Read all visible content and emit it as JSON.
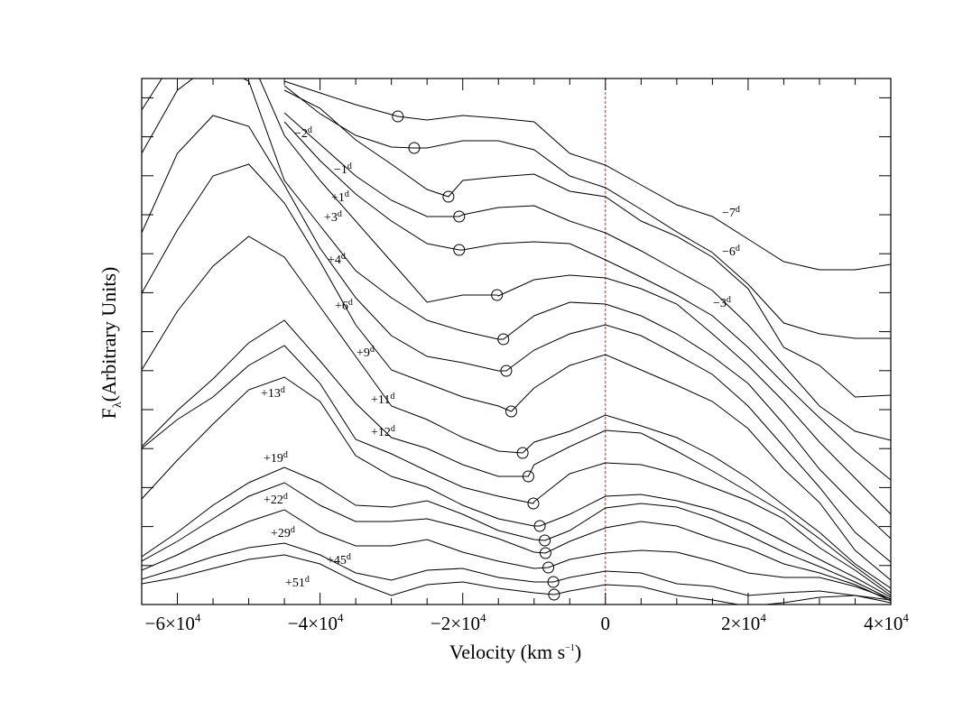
{
  "chart_data": {
    "type": "line",
    "title": "",
    "xlabel": {
      "text": "Velocity (km s",
      "superscript": "−1",
      "suffix": ")"
    },
    "ylabel": {
      "text": "F",
      "subscript": "λ",
      "suffix": "(Arbitrary Units)"
    },
    "xlim": [
      -65000,
      40000
    ],
    "ylim": [
      0,
      58.3
    ],
    "x_major_ticks": [
      -60000,
      -40000,
      -20000,
      0,
      20000,
      40000
    ],
    "x_minor_tick_step": 5000,
    "y_tick_step": 4.32,
    "y_tick_labels": "none",
    "x_tick_labels": [
      {
        "mantissa": "−6×10",
        "exp": "4"
      },
      {
        "mantissa": "−4×10",
        "exp": "4"
      },
      {
        "mantissa": "−2×10",
        "exp": "4"
      },
      {
        "mantissa": "0",
        "exp": ""
      },
      {
        "mantissa": "2×10",
        "exp": "4"
      },
      {
        "mantissa": "4×10",
        "exp": "4"
      }
    ],
    "grid": false,
    "line_color": "#000000",
    "reference_line": {
      "velocity": 0,
      "color": "#a8332e",
      "style": "dashed"
    },
    "epoch_unit": "d",
    "velocities": [
      -65000,
      -60000,
      -55000,
      -50000,
      -45000,
      -40000,
      -35000,
      -30000,
      -25000,
      -20000,
      -15000,
      -10000,
      -5000,
      0,
      5000,
      10000,
      15000,
      20000,
      25000,
      30000,
      35000,
      40000
    ],
    "series": [
      {
        "name": "−7",
        "flux": [
          null,
          null,
          null,
          null,
          58.0,
          56.7,
          55.4,
          54.3,
          53.7,
          54.2,
          53.9,
          53.5,
          50.0,
          48.7,
          46.5,
          44.3,
          43.0,
          40.5,
          38.0,
          37.1,
          37.1,
          37.7
        ],
        "minimum": [
          -29100,
          54.1
        ]
      },
      {
        "name": "−6",
        "flux": [
          null,
          null,
          null,
          null,
          57.5,
          54.4,
          52.0,
          50.7,
          50.6,
          51.4,
          51.4,
          50.4,
          47.5,
          46.2,
          43.8,
          41.3,
          39.0,
          35.5,
          31.2,
          30.0,
          29.5,
          29.5
        ],
        "minimum": [
          -26800,
          50.6
        ]
      },
      {
        "name": "−3",
        "flux": [
          null,
          null,
          null,
          null,
          57.0,
          55.0,
          51.5,
          48.8,
          46.0,
          47.0,
          47.4,
          47.7,
          45.8,
          45.2,
          42.5,
          40.8,
          38.5,
          35.0,
          28.5,
          26.5,
          23.0,
          23.2
        ],
        "minimum": [
          -22000,
          45.2
        ]
      },
      {
        "name": "−2",
        "flux": [
          null,
          null,
          null,
          null,
          54.5,
          51.0,
          47.5,
          44.8,
          43.0,
          43.2,
          44.0,
          44.2,
          42.5,
          41.2,
          39.2,
          37.0,
          34.8,
          31.0,
          26.5,
          22.0,
          19.2,
          18.2
        ],
        "minimum": [
          -20500,
          43.0
        ]
      },
      {
        "name": "−1",
        "flux": [
          null,
          null,
          null,
          null,
          53.5,
          49.2,
          45.5,
          42.5,
          40.0,
          39.3,
          40.0,
          40.2,
          40.0,
          38.2,
          36.3,
          34.3,
          32.0,
          28.5,
          24.5,
          20.7,
          17.0,
          13.8
        ],
        "minimum": [
          -20500,
          39.3
        ]
      },
      {
        "name": "+1",
        "flux": [
          54.8,
          61.0,
          63.0,
          61.0,
          52.0,
          47.0,
          42.5,
          38.0,
          33.5,
          34.3,
          34.2,
          36.0,
          36.5,
          36.2,
          35.0,
          33.3,
          30.0,
          26.5,
          22.5,
          18.0,
          14.0,
          10.0
        ],
        "minimum": [
          -15200,
          34.3
        ]
      },
      {
        "name": "+3",
        "flux": [
          50.0,
          57.0,
          60.0,
          58.0,
          47.0,
          42.0,
          37.0,
          34.0,
          31.5,
          30.3,
          29.4,
          32.0,
          33.5,
          33.3,
          32.0,
          30.0,
          27.5,
          24.5,
          20.0,
          15.0,
          11.0,
          7.3
        ],
        "minimum": [
          -14300,
          29.4
        ]
      },
      {
        "name": "+4",
        "flux": [
          41.2,
          50.0,
          54.2,
          53.0,
          46.5,
          39.5,
          34.0,
          29.8,
          27.5,
          26.8,
          25.9,
          28.2,
          30.0,
          31.0,
          29.8,
          27.7,
          25.5,
          22.0,
          17.5,
          13.0,
          8.0,
          4.7
        ],
        "minimum": [
          -13900,
          25.9
        ]
      },
      {
        "name": "+6",
        "flux": [
          34.5,
          41.5,
          47.5,
          48.8,
          44.5,
          38.0,
          31.0,
          26.0,
          24.5,
          23.0,
          22.0,
          24.0,
          26.5,
          27.7,
          26.0,
          24.3,
          22.5,
          19.5,
          15.0,
          11.3,
          6.0,
          2.7
        ],
        "minimum": [
          -13200,
          21.4
        ]
      },
      {
        "name": "+9",
        "flux": [
          26.0,
          32.5,
          37.5,
          40.8,
          38.5,
          33.0,
          27.5,
          22.0,
          20.5,
          18.5,
          17.0,
          18.0,
          19.2,
          21.0,
          19.8,
          18.5,
          16.5,
          14.0,
          11.0,
          8.0,
          4.5,
          1.8
        ],
        "minimum": [
          -11600,
          16.8
        ]
      },
      {
        "name": "+11",
        "flux": [
          17.5,
          21.5,
          25.0,
          29.0,
          31.5,
          27.0,
          22.3,
          18.5,
          17.3,
          15.5,
          14.2,
          15.5,
          17.5,
          19.3,
          19.0,
          17.0,
          14.8,
          12.5,
          10.2,
          7.3,
          4.2,
          1.3
        ],
        "minimum": [
          -10800,
          14.2
        ]
      },
      {
        "name": "+12",
        "flux": [
          17.3,
          20.5,
          23.0,
          26.5,
          28.7,
          24.5,
          18.3,
          16.7,
          14.8,
          13.0,
          12.0,
          11.4,
          14.5,
          15.7,
          15.5,
          14.5,
          13.0,
          11.5,
          9.5,
          6.3,
          3.8,
          1.0
        ],
        "minimum": [
          -10100,
          11.2
        ]
      },
      {
        "name": "+13",
        "flux": [
          11.7,
          16.0,
          20.0,
          23.8,
          25.2,
          22.5,
          16.5,
          14.2,
          13.0,
          11.0,
          9.5,
          8.7,
          10.0,
          12.0,
          12.2,
          11.5,
          10.5,
          9.0,
          7.0,
          5.0,
          3.0,
          0.8
        ],
        "minimum": [
          -9200,
          8.7
        ]
      },
      {
        "name": "+19",
        "flux": [
          5.3,
          8.0,
          11.0,
          13.5,
          15.2,
          13.5,
          11.0,
          10.8,
          11.5,
          10.0,
          8.2,
          7.2,
          8.2,
          10.7,
          11.2,
          10.8,
          9.5,
          7.7,
          5.8,
          4.2,
          2.5,
          0.6
        ],
        "minimum": [
          -8500,
          7.1
        ]
      },
      {
        "name": "+22",
        "flux": [
          4.8,
          7.0,
          9.5,
          12.0,
          13.5,
          11.0,
          9.2,
          9.2,
          9.5,
          8.5,
          7.3,
          5.8,
          7.0,
          8.5,
          9.2,
          8.7,
          7.3,
          6.2,
          4.5,
          3.5,
          2.2,
          0.4
        ],
        "minimum": [
          -8400,
          5.7
        ]
      },
      {
        "name": "+29",
        "flux": [
          3.8,
          5.5,
          7.5,
          9.2,
          10.5,
          8.0,
          6.5,
          6.5,
          7.2,
          5.8,
          4.8,
          4.0,
          5.0,
          5.7,
          6.0,
          5.8,
          4.8,
          3.5,
          3.0,
          3.0,
          2.0,
          0.6
        ],
        "minimum": [
          -8000,
          4.1
        ]
      },
      {
        "name": "+45",
        "flux": [
          2.8,
          4.0,
          5.3,
          6.3,
          6.8,
          5.5,
          3.5,
          2.7,
          3.8,
          4.0,
          3.0,
          2.5,
          3.0,
          3.7,
          3.5,
          2.3,
          2.0,
          1.0,
          1.3,
          1.5,
          1.0,
          0.5
        ],
        "minimum": [
          -7300,
          2.5
        ]
      },
      {
        "name": "+51",
        "flux": [
          2.3,
          3.0,
          4.0,
          5.0,
          5.5,
          4.5,
          2.5,
          1.0,
          2.2,
          2.5,
          1.8,
          1.3,
          1.5,
          2.2,
          2.0,
          1.0,
          0.5,
          -0.2,
          0.2,
          0.8,
          1.0,
          0.2
        ],
        "minimum": [
          -7200,
          1.1
        ]
      }
    ]
  }
}
